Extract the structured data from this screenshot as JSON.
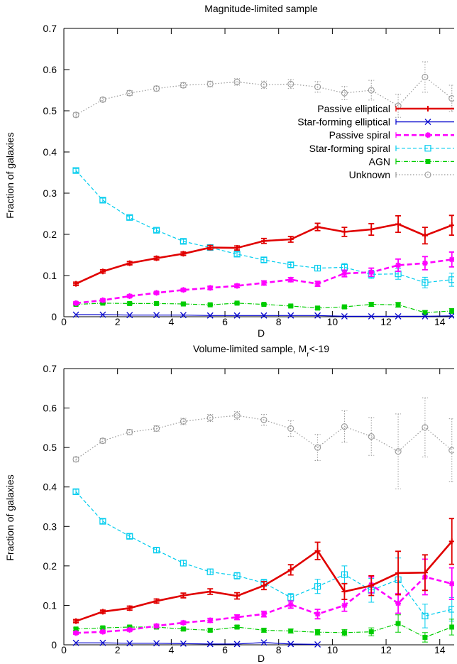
{
  "chart_data": [
    {
      "type": "line",
      "title": "Magnitude-limited sample",
      "title_sub": "",
      "title_post": "",
      "xlabel": "D",
      "ylabel": "Fraction of galaxies",
      "xlim": [
        0,
        14.8
      ],
      "ylim": [
        0,
        0.7
      ],
      "xticks": [
        0,
        2,
        4,
        6,
        8,
        10,
        12,
        14
      ],
      "yticks": [
        0,
        0.1,
        0.2,
        0.3,
        0.4,
        0.5,
        0.6,
        0.7
      ],
      "grid": false,
      "legend_position": "right",
      "x": [
        0.45,
        1.45,
        2.45,
        3.45,
        4.45,
        5.45,
        6.45,
        7.45,
        8.45,
        9.45,
        10.45,
        11.45,
        12.45,
        13.45,
        14.45
      ],
      "series": [
        {
          "name": "Passive elliptical",
          "color": "#e00000",
          "dash": "",
          "width": 2.6,
          "marker": "plus",
          "values": [
            0.08,
            0.11,
            0.13,
            0.142,
            0.153,
            0.168,
            0.167,
            0.184,
            0.188,
            0.218,
            0.206,
            0.212,
            0.225,
            0.197,
            0.222
          ],
          "errors": [
            0.004,
            0.004,
            0.004,
            0.004,
            0.004,
            0.005,
            0.005,
            0.006,
            0.007,
            0.009,
            0.011,
            0.014,
            0.02,
            0.02,
            0.024
          ]
        },
        {
          "name": "Star-forming elliptical",
          "color": "#0000cc",
          "dash": "",
          "width": 1.2,
          "marker": "cross",
          "values": [
            0.005,
            0.005,
            0.004,
            0.004,
            0.004,
            0.003,
            0.003,
            0.003,
            0.003,
            0.003,
            0.001,
            0.001,
            0.001,
            0.001,
            0.002
          ],
          "errors": [
            0,
            0,
            0,
            0,
            0,
            0,
            0,
            0,
            0,
            0,
            0,
            0,
            0,
            0,
            0
          ]
        },
        {
          "name": "Passive spiral",
          "color": "#ff00ff",
          "dash": "7,4",
          "width": 2.6,
          "marker": "star",
          "values": [
            0.033,
            0.04,
            0.05,
            0.058,
            0.065,
            0.07,
            0.075,
            0.082,
            0.09,
            0.08,
            0.105,
            0.108,
            0.125,
            0.13,
            0.139
          ],
          "errors": [
            0.003,
            0.003,
            0.003,
            0.003,
            0.003,
            0.004,
            0.004,
            0.005,
            0.005,
            0.006,
            0.008,
            0.01,
            0.015,
            0.016,
            0.018
          ]
        },
        {
          "name": "Star-forming spiral",
          "color": "#00ccee",
          "dash": "5,3",
          "width": 1.2,
          "marker": "open-square",
          "values": [
            0.355,
            0.283,
            0.241,
            0.21,
            0.183,
            0.168,
            0.152,
            0.138,
            0.126,
            0.118,
            0.12,
            0.103,
            0.104,
            0.083,
            0.09
          ],
          "errors": [
            0.005,
            0.005,
            0.005,
            0.005,
            0.005,
            0.005,
            0.005,
            0.006,
            0.006,
            0.007,
            0.009,
            0.01,
            0.013,
            0.013,
            0.016
          ]
        },
        {
          "name": "AGN",
          "color": "#00cc00",
          "dash": "6,2,1,2",
          "width": 1.2,
          "marker": "square",
          "values": [
            0.03,
            0.033,
            0.032,
            0.032,
            0.031,
            0.029,
            0.033,
            0.03,
            0.026,
            0.021,
            0.024,
            0.03,
            0.029,
            0.01,
            0.014
          ],
          "errors": [
            0.002,
            0.002,
            0.002,
            0.002,
            0.002,
            0.002,
            0.002,
            0.002,
            0.002,
            0.003,
            0.004,
            0.005,
            0.006,
            0.005,
            0.006
          ]
        },
        {
          "name": "Unknown",
          "color": "#999999",
          "dash": "1.5,2.5",
          "width": 1.2,
          "marker": "circle",
          "values": [
            0.49,
            0.527,
            0.543,
            0.554,
            0.562,
            0.565,
            0.57,
            0.563,
            0.565,
            0.558,
            0.543,
            0.55,
            0.512,
            0.582,
            0.53
          ],
          "errors": [
            0.005,
            0.005,
            0.006,
            0.006,
            0.006,
            0.007,
            0.008,
            0.009,
            0.011,
            0.013,
            0.016,
            0.024,
            0.028,
            0.037,
            0.032
          ]
        }
      ]
    },
    {
      "type": "line",
      "title": "Volume-limited sample, M",
      "title_sub": "r",
      "title_post": "<-19",
      "xlabel": "D",
      "ylabel": "Fraction of galaxies",
      "xlim": [
        0,
        14.8
      ],
      "ylim": [
        0,
        0.7
      ],
      "xticks": [
        0,
        2,
        4,
        6,
        8,
        10,
        12,
        14
      ],
      "yticks": [
        0,
        0.1,
        0.2,
        0.3,
        0.4,
        0.5,
        0.6,
        0.7
      ],
      "grid": false,
      "legend_position": "none",
      "x": [
        0.45,
        1.45,
        2.45,
        3.45,
        4.45,
        5.45,
        6.45,
        7.45,
        8.45,
        9.45,
        10.45,
        11.45,
        12.45,
        13.45,
        14.45
      ],
      "series": [
        {
          "name": "Passive elliptical",
          "color": "#e00000",
          "dash": "",
          "width": 2.6,
          "marker": "plus",
          "values": [
            0.06,
            0.084,
            0.093,
            0.111,
            0.125,
            0.135,
            0.124,
            0.15,
            0.19,
            0.238,
            0.135,
            0.15,
            0.182,
            0.183,
            0.262
          ],
          "errors": [
            0.004,
            0.004,
            0.005,
            0.005,
            0.006,
            0.007,
            0.008,
            0.01,
            0.013,
            0.022,
            0.02,
            0.025,
            0.055,
            0.045,
            0.058
          ]
        },
        {
          "name": "Star-forming elliptical",
          "color": "#0000cc",
          "dash": "",
          "width": 1.2,
          "marker": "cross",
          "values": [
            0.005,
            0.005,
            0.004,
            0.004,
            0.003,
            0.002,
            0.002,
            0.006,
            0.002,
            0.001,
            null,
            null,
            null,
            null,
            null
          ],
          "errors": [
            0,
            0,
            0,
            0,
            0,
            0,
            0,
            0,
            0,
            0,
            0,
            0,
            0,
            0,
            0
          ]
        },
        {
          "name": "Passive spiral",
          "color": "#ff00ff",
          "dash": "7,4",
          "width": 2.6,
          "marker": "star",
          "values": [
            0.03,
            0.033,
            0.038,
            0.048,
            0.056,
            0.062,
            0.07,
            0.078,
            0.102,
            0.078,
            0.1,
            0.152,
            0.105,
            0.172,
            0.155
          ],
          "errors": [
            0.003,
            0.003,
            0.003,
            0.004,
            0.004,
            0.005,
            0.006,
            0.007,
            0.009,
            0.012,
            0.015,
            0.02,
            0.025,
            0.045,
            0.04
          ]
        },
        {
          "name": "Star-forming spiral",
          "color": "#00ccee",
          "dash": "5,3",
          "width": 1.2,
          "marker": "open-square",
          "values": [
            0.388,
            0.313,
            0.275,
            0.24,
            0.207,
            0.185,
            0.175,
            0.157,
            0.12,
            0.148,
            0.178,
            0.138,
            0.165,
            0.073,
            0.09
          ],
          "errors": [
            0.006,
            0.006,
            0.006,
            0.006,
            0.007,
            0.007,
            0.008,
            0.009,
            0.01,
            0.018,
            0.022,
            0.03,
            0.055,
            0.03,
            0.03
          ]
        },
        {
          "name": "AGN",
          "color": "#00cc00",
          "dash": "6,2,1,2",
          "width": 1.2,
          "marker": "square",
          "values": [
            0.04,
            0.043,
            0.045,
            0.045,
            0.04,
            0.037,
            0.045,
            0.037,
            0.035,
            0.032,
            0.031,
            0.033,
            0.054,
            0.019,
            0.045
          ],
          "errors": [
            0.003,
            0.003,
            0.003,
            0.003,
            0.003,
            0.004,
            0.004,
            0.005,
            0.005,
            0.007,
            0.008,
            0.01,
            0.022,
            0.012,
            0.02
          ]
        },
        {
          "name": "Unknown",
          "color": "#999999",
          "dash": "1.5,2.5",
          "width": 1.2,
          "marker": "circle",
          "values": [
            0.47,
            0.517,
            0.539,
            0.548,
            0.566,
            0.575,
            0.581,
            0.57,
            0.548,
            0.5,
            0.553,
            0.528,
            0.49,
            0.551,
            0.493
          ],
          "errors": [
            0.006,
            0.006,
            0.007,
            0.007,
            0.008,
            0.009,
            0.01,
            0.014,
            0.02,
            0.033,
            0.04,
            0.048,
            0.095,
            0.075,
            0.08
          ]
        }
      ]
    }
  ]
}
